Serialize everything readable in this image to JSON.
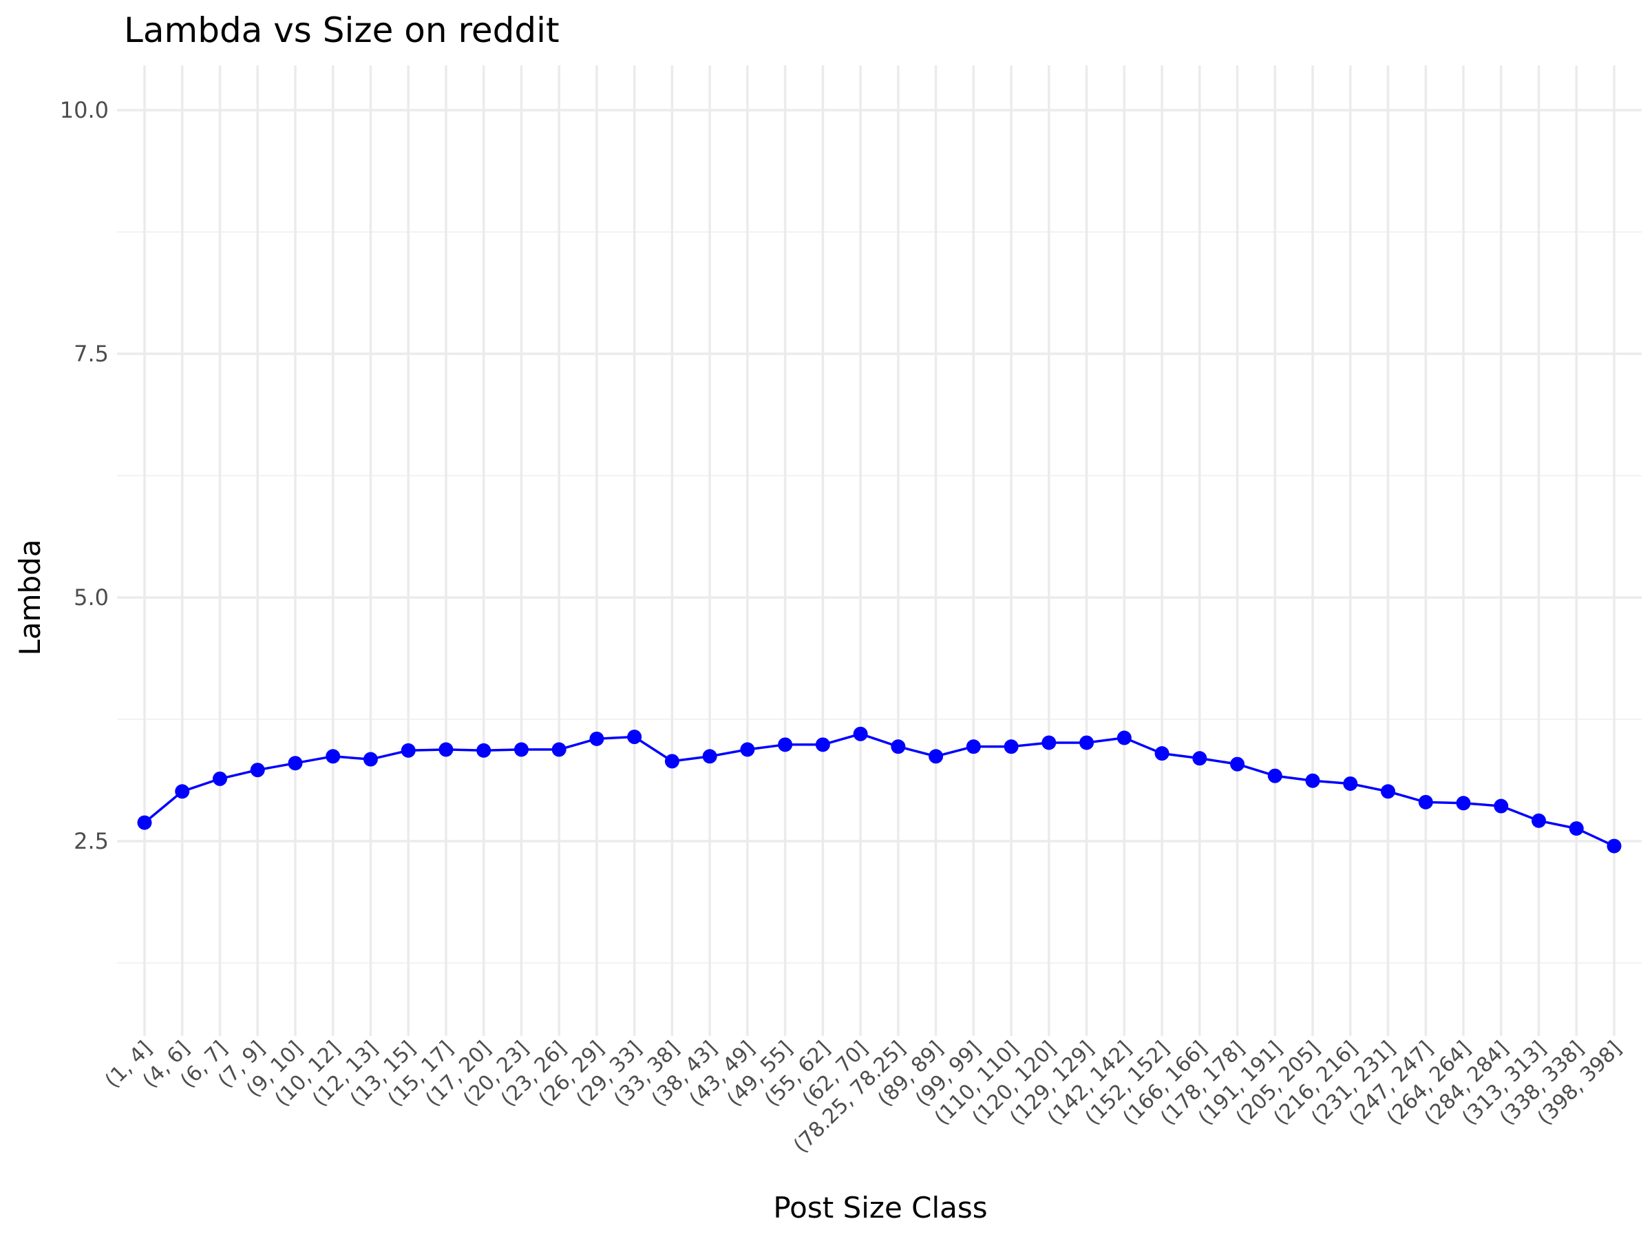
{
  "chart_data": {
    "type": "line",
    "title": "Lambda vs Size on reddit",
    "xlabel": "Post Size Class",
    "ylabel": "Lambda",
    "ylim": [
      0.75,
      10.45
    ],
    "yticks": [
      "2.5",
      "5.0",
      "7.5",
      "10.0"
    ],
    "ytick_values": [
      2.5,
      5.0,
      7.5,
      10.0
    ],
    "grid": true,
    "categories": [
      "(1, 4]",
      "(4, 6]",
      "(6, 7]",
      "(7, 9]",
      "(9, 10]",
      "(10, 12]",
      "(12, 13]",
      "(13, 15]",
      "(15, 17]",
      "(17, 20]",
      "(20, 23]",
      "(23, 26]",
      "(26, 29]",
      "(29, 33]",
      "(33, 38]",
      "(38, 43]",
      "(43, 49]",
      "(49, 55]",
      "(55, 62]",
      "(62, 70]",
      "(78.25, 78.25]",
      "(89, 89]",
      "(99, 99]",
      "(110, 110]",
      "(120, 120]",
      "(129, 129]",
      "(142, 142]",
      "(152, 152]",
      "(166, 166]",
      "(178, 178]",
      "(191, 191]",
      "(205, 205]",
      "(216, 216]",
      "(231, 231]",
      "(247, 247]",
      "(264, 264]",
      "(284, 284]",
      "(313, 313]",
      "(338, 338]",
      "(398, 398]"
    ],
    "series": [
      {
        "color": "#0000ff",
        "values": [
          2.69,
          3.01,
          3.14,
          3.23,
          3.3,
          3.37,
          3.34,
          3.43,
          3.44,
          3.43,
          3.44,
          3.44,
          3.55,
          3.57,
          3.32,
          3.37,
          3.44,
          3.49,
          3.49,
          3.6,
          3.47,
          3.37,
          3.47,
          3.47,
          3.51,
          3.51,
          3.56,
          3.4,
          3.35,
          3.29,
          3.17,
          3.12,
          3.09,
          3.01,
          2.9,
          2.89,
          2.86,
          2.71,
          2.63,
          2.45
        ]
      }
    ]
  }
}
